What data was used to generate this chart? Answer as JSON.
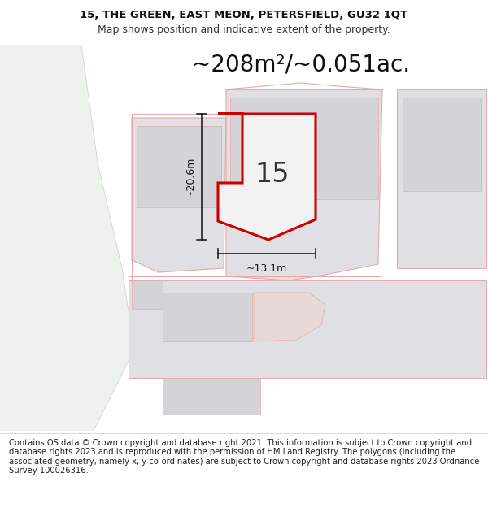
{
  "title_line1": "15, THE GREEN, EAST MEON, PETERSFIELD, GU32 1QT",
  "title_line2": "Map shows position and indicative extent of the property.",
  "area_text": "~208m²/~0.051ac.",
  "number_label": "15",
  "dim_height": "~20.6m",
  "dim_width": "~13.1m",
  "footer_text": "Contains OS data © Crown copyright and database right 2021. This information is subject to Crown copyright and database rights 2023 and is reproduced with the permission of HM Land Registry. The polygons (including the associated geometry, namely x, y co-ordinates) are subject to Crown copyright and database rights 2023 Ordnance Survey 100026316.",
  "bg_color": "#ffffff",
  "map_bg": "#fafafa",
  "green_bg": "#eef2ec",
  "red_main": "#cc0000",
  "red_light": "#e8a8a8",
  "gray_fill": "#e0e0e4",
  "gray_inner": "#d4d4d8",
  "title_fontsize": 9.5,
  "subtitle_fontsize": 9,
  "area_fontsize": 20,
  "footer_fontsize": 7.2
}
